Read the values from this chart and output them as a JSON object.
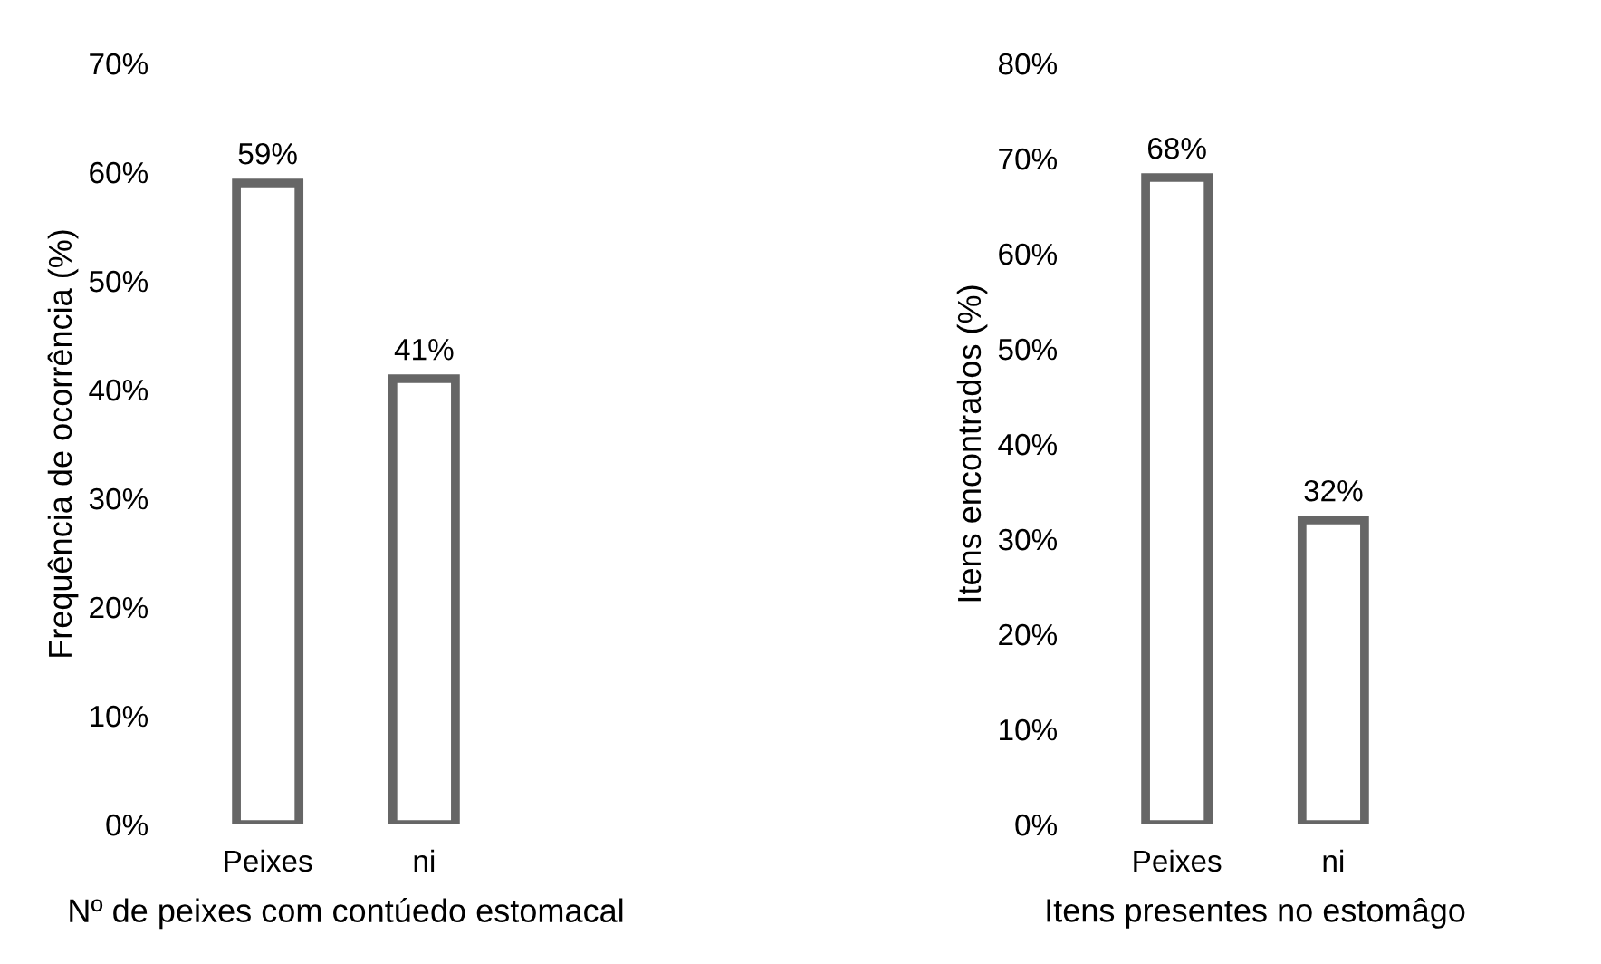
{
  "chart_data": [
    {
      "type": "bar",
      "categories": [
        "Peixes",
        "ni"
      ],
      "values": [
        59,
        41
      ],
      "color": "#666666",
      "ylabel": "Frequência de ocorrência (%)",
      "xlabel": "Nº de peixes com contúedo estomacal",
      "ylim": [
        0,
        70
      ],
      "yticks": [
        {
          "value": 0,
          "label": "0%"
        },
        {
          "value": 10,
          "label": "10%"
        },
        {
          "value": 20,
          "label": "20%"
        },
        {
          "value": 30,
          "label": "30%"
        },
        {
          "value": 40,
          "label": "40%"
        },
        {
          "value": 50,
          "label": "50%"
        },
        {
          "value": 60,
          "label": "60%"
        },
        {
          "value": 70,
          "label": "70%"
        }
      ],
      "value_labels": [
        "59%",
        "41%"
      ],
      "grid": false
    },
    {
      "type": "bar",
      "categories": [
        "Peixes",
        "ni"
      ],
      "values": [
        68,
        32
      ],
      "color": "#666666",
      "ylabel": "Itens encontrados (%)",
      "xlabel": "Itens presentes no estomâgo",
      "ylim": [
        0,
        80
      ],
      "yticks": [
        {
          "value": 0,
          "label": "0%"
        },
        {
          "value": 10,
          "label": "10%"
        },
        {
          "value": 20,
          "label": "20%"
        },
        {
          "value": 30,
          "label": "30%"
        },
        {
          "value": 40,
          "label": "40%"
        },
        {
          "value": 50,
          "label": "50%"
        },
        {
          "value": 60,
          "label": "60%"
        },
        {
          "value": 70,
          "label": "70%"
        },
        {
          "value": 80,
          "label": "80%"
        }
      ],
      "value_labels": [
        "68%",
        "32%"
      ],
      "grid": false
    }
  ]
}
